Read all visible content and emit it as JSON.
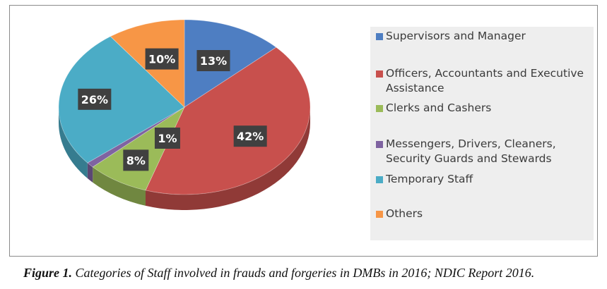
{
  "chart_data": {
    "type": "pie",
    "categories": [
      "Supervisors and Manager",
      "Officers, Accountants and Executive Assistance",
      "Clerks and Cashers",
      "Messengers, Drivers, Cleaners, Security Guards and Stewards",
      "Temporary Staff",
      "Others"
    ],
    "values": [
      13,
      42,
      8,
      1,
      26,
      10
    ],
    "data_labels": [
      "13%",
      "42%",
      "8%",
      "1%",
      "26%",
      "10%"
    ],
    "colors": [
      "#4e7ec2",
      "#c8504d",
      "#9bbb59",
      "#7f63a1",
      "#4bacc6",
      "#f79646"
    ],
    "legend_position": "right",
    "title": ""
  },
  "legend": {
    "items": [
      {
        "label_lines": [
          "Supervisors and Manager"
        ]
      },
      {
        "label_lines": [
          "Officers, Accountants and Executive",
          "Assistance"
        ]
      },
      {
        "label_lines": [
          "Clerks and Cashers"
        ]
      },
      {
        "label_lines": [
          "Messengers, Drivers, Cleaners,",
          "Security Guards and Stewards"
        ]
      },
      {
        "label_lines": [
          "Temporary Staff"
        ]
      },
      {
        "label_lines": [
          "Others"
        ]
      }
    ]
  },
  "caption": {
    "prefix": "Figure 1.",
    "text": " Categories of Staff involved in frauds and forgeries in DMBs in 2016; NDIC Report 2016."
  }
}
